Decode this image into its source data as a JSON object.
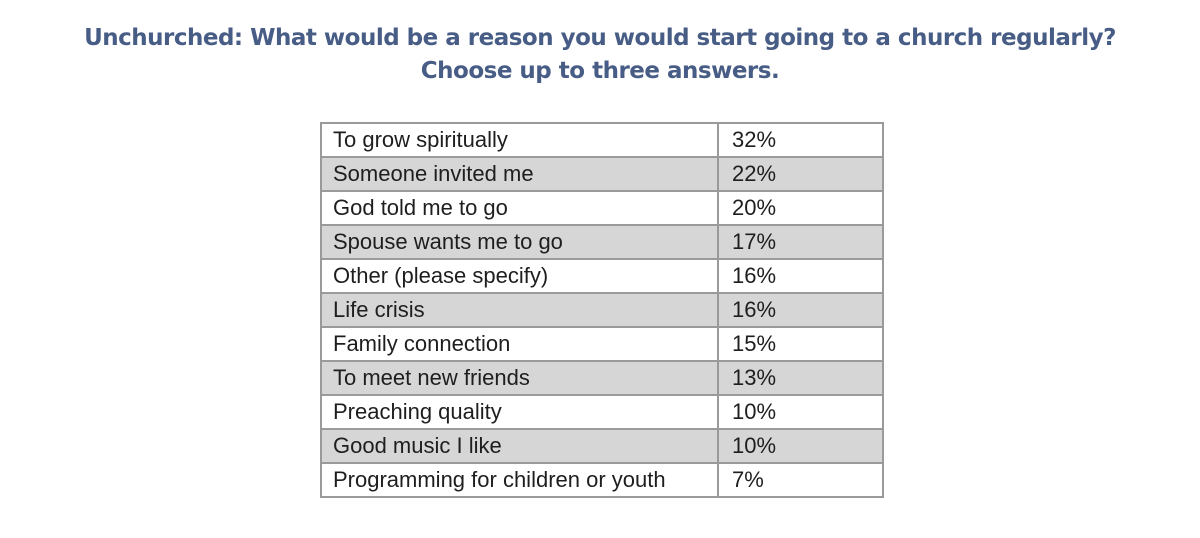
{
  "header": {
    "title": "Unchurched: What would be a reason you would start going to a church regularly?",
    "subtitle": "Choose up to three answers."
  },
  "table": {
    "rows": [
      [
        "To grow spiritually",
        "32%"
      ],
      [
        "Someone invited me",
        "22%"
      ],
      [
        "God told me to go",
        "20%"
      ],
      [
        "Spouse wants me to go",
        "17%"
      ],
      [
        "Other (please specify)",
        "16%"
      ],
      [
        "Life crisis",
        "16%"
      ],
      [
        "Family connection",
        "15%"
      ],
      [
        "To meet new friends",
        "13%"
      ],
      [
        "Preaching quality",
        "10%"
      ],
      [
        "Good music I like",
        "10%"
      ],
      [
        "Programming for children or youth",
        "7%"
      ]
    ]
  }
}
